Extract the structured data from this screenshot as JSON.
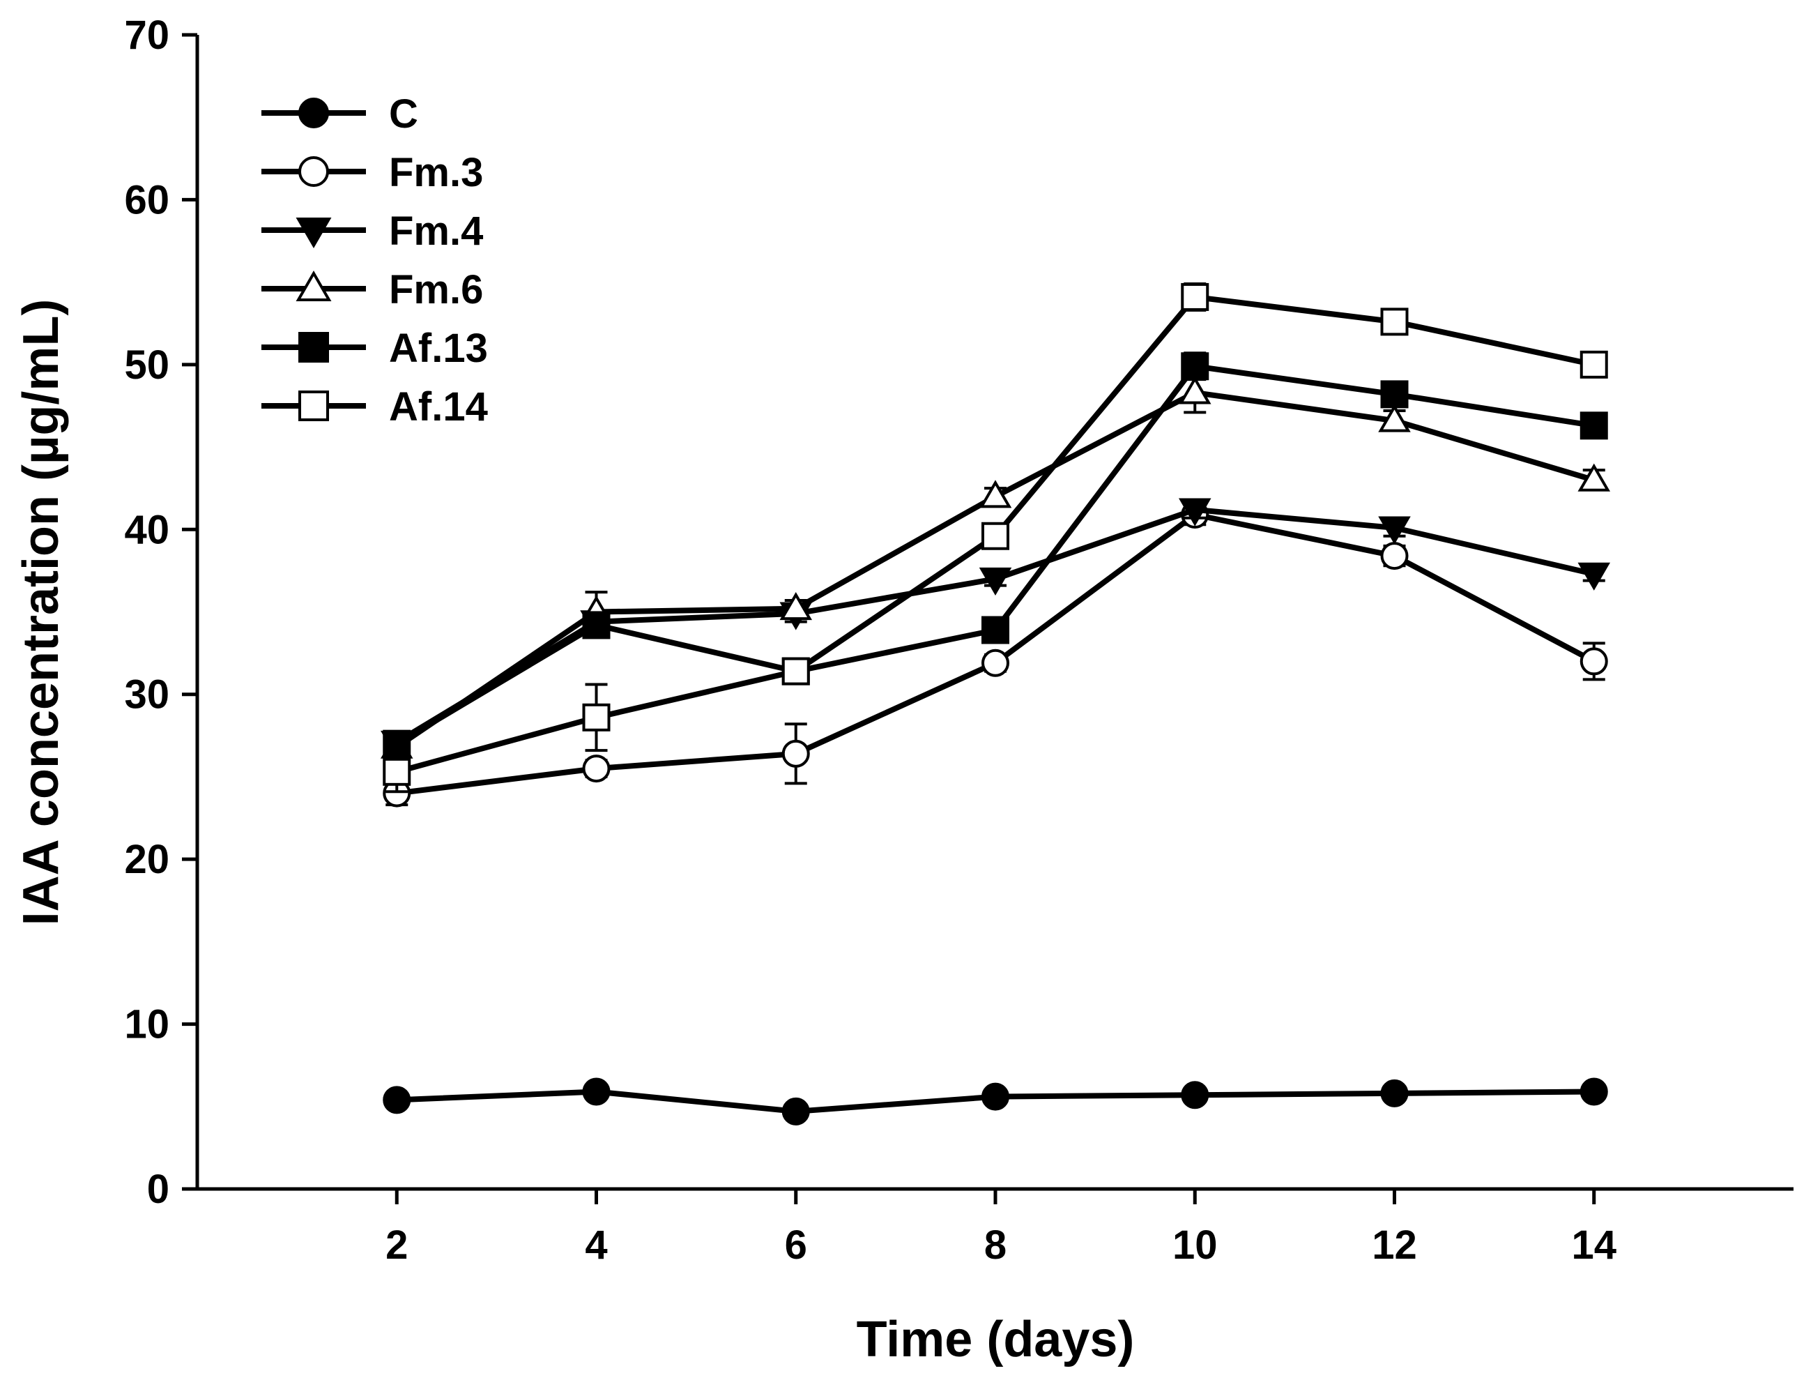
{
  "chart_data": {
    "type": "line",
    "title": "",
    "xlabel": "Time (days)",
    "ylabel": "IAA concentration (µg/mL)",
    "x": [
      2,
      4,
      6,
      8,
      10,
      12,
      14
    ],
    "xticks": [
      "2",
      "4",
      "6",
      "8",
      "10",
      "12",
      "14"
    ],
    "xlim": [
      0,
      16
    ],
    "ylim": [
      0,
      70
    ],
    "yticks": [
      "0",
      "10",
      "20",
      "30",
      "40",
      "50",
      "60",
      "70"
    ],
    "grid": false,
    "legend_position": "top-left",
    "series": [
      {
        "name": "C",
        "marker": "circle-filled",
        "values": [
          5.4,
          5.9,
          4.7,
          5.6,
          5.7,
          5.8,
          5.9
        ],
        "errors": [
          0.4,
          0.3,
          0.3,
          0.3,
          0.3,
          0.3,
          0.3
        ]
      },
      {
        "name": "Fm.3",
        "marker": "circle-open",
        "values": [
          24.0,
          25.5,
          26.4,
          31.9,
          40.9,
          38.4,
          32.0
        ],
        "errors": [
          0.7,
          0.5,
          1.8,
          0.5,
          0.6,
          0.6,
          1.1
        ]
      },
      {
        "name": "Fm.4",
        "marker": "triangle-down-filled",
        "values": [
          27.1,
          34.4,
          34.9,
          37.0,
          41.2,
          40.1,
          37.3
        ],
        "errors": [
          0.5,
          0.6,
          0.5,
          0.4,
          0.5,
          0.5,
          0.4
        ]
      },
      {
        "name": "Fm.6",
        "marker": "triangle-up-open",
        "values": [
          26.8,
          35.0,
          35.2,
          42.0,
          48.3,
          46.6,
          43.0
        ],
        "errors": [
          0.5,
          1.2,
          0.5,
          0.5,
          1.2,
          0.6,
          0.6
        ]
      },
      {
        "name": "Af.13",
        "marker": "square-filled",
        "values": [
          27.0,
          34.2,
          31.4,
          33.9,
          49.9,
          48.2,
          46.3
        ],
        "errors": [
          0.6,
          0.6,
          0.4,
          0.5,
          0.8,
          0.5,
          0.5
        ]
      },
      {
        "name": "Af.14",
        "marker": "square-open",
        "values": [
          25.3,
          28.6,
          31.4,
          39.6,
          54.1,
          52.6,
          50.0
        ],
        "errors": [
          1.2,
          2.0,
          0.4,
          0.6,
          0.8,
          0.4,
          0.4
        ]
      }
    ]
  }
}
